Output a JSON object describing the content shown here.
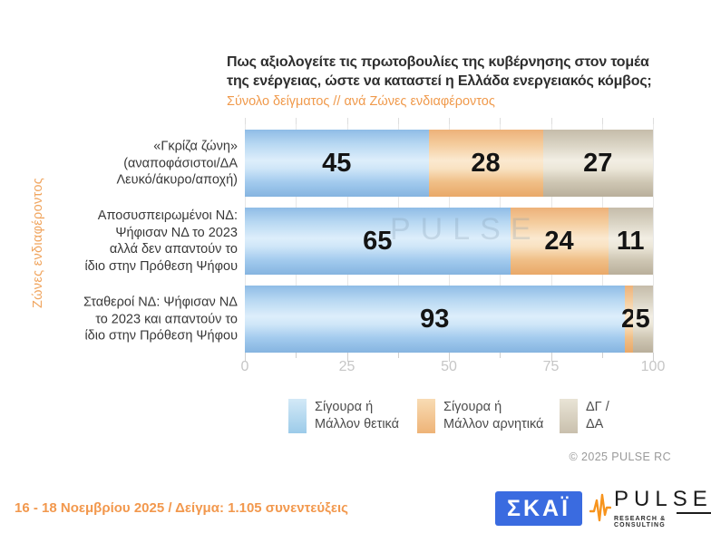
{
  "header": {
    "title_line1": "Πως αξιολογείτε τις πρωτοβουλίες της κυβέρνησης στον τομέα",
    "title_line2": "της ενέργειας, ώστε να καταστεί η Ελλάδα ενεργειακός κόμβος;",
    "subtitle": "Σύνολο δείγματος // ανά Ζώνες ενδιαφέροντος"
  },
  "side_label": "Ζώνες ενδιαφέροντος",
  "watermark": "PULSE",
  "chart_data": {
    "type": "bar",
    "orientation": "horizontal_stacked",
    "title": "Πως αξιολογείτε τις πρωτοβουλίες της κυβέρνησης στον τομέα της ενέργειας, ώστε να καταστεί η Ελλάδα ενεργειακός κόμβος;",
    "subtitle": "Σύνολο δείγματος // ανά Ζώνες ενδιαφέροντος",
    "group_axis_label": "Ζώνες ενδιαφέροντος",
    "xlim": [
      0,
      100
    ],
    "x_ticks": [
      0,
      25,
      50,
      75,
      100
    ],
    "minor_tick_step": 12.5,
    "grid": true,
    "legend_position": "bottom",
    "categories": [
      [
        "«Γκρίζα ζώνη»",
        "(αναποφάσιστοι/ΔΑ",
        "Λευκό/άκυρο/αποχή)"
      ],
      [
        "Αποσυσπειρωμένοι ΝΔ:",
        "Ψήφισαν ΝΔ το 2023",
        "αλλά δεν απαντούν το",
        "ίδιο στην Πρόθεση Ψήφου"
      ],
      [
        "Σταθεροί ΝΔ: Ψήφισαν ΝΔ",
        "το 2023 και απαντούν το",
        "ίδιο στην Πρόθεση Ψήφου"
      ]
    ],
    "series": [
      {
        "name": "Σίγουρα ή Μάλλον θετικά",
        "color": "#A9CFEF",
        "values": [
          45,
          65,
          93
        ]
      },
      {
        "name": "Σίγουρα ή Μάλλον αρνητικά",
        "color": "#F5C79B",
        "values": [
          28,
          24,
          2
        ]
      },
      {
        "name": "ΔΓ / ΔΑ",
        "color": "#D8D1C0",
        "values": [
          27,
          11,
          5
        ]
      }
    ],
    "copyright": "© 2025 PULSE RC"
  },
  "legend": {
    "items": [
      {
        "lines": [
          "Σίγουρα ή",
          "Μάλλον θετικά"
        ]
      },
      {
        "lines": [
          "Σίγουρα ή",
          "Μάλλον αρνητικά"
        ]
      },
      {
        "lines": [
          "ΔΓ /",
          "ΔΑ"
        ]
      }
    ]
  },
  "footer": {
    "note": "16 - 18 Νοεμβρίου 2025  /  Δείγμα:  1.105 συνεντεύξεις",
    "skai_logo_text": "ΣΚΑΪ",
    "pulse_logo_text": "PULSE",
    "pulse_logo_subtext": "RESEARCH & CONSULTING"
  },
  "colors": {
    "accent_orange": "#F09A4C",
    "title_text": "#2E2E2E",
    "axis_text": "#C6C6C6",
    "legend_text": "#4C4C4C",
    "value_text": "#141414",
    "skai_blue": "#3A6BE0",
    "pulse_orange": "#F7941D"
  }
}
